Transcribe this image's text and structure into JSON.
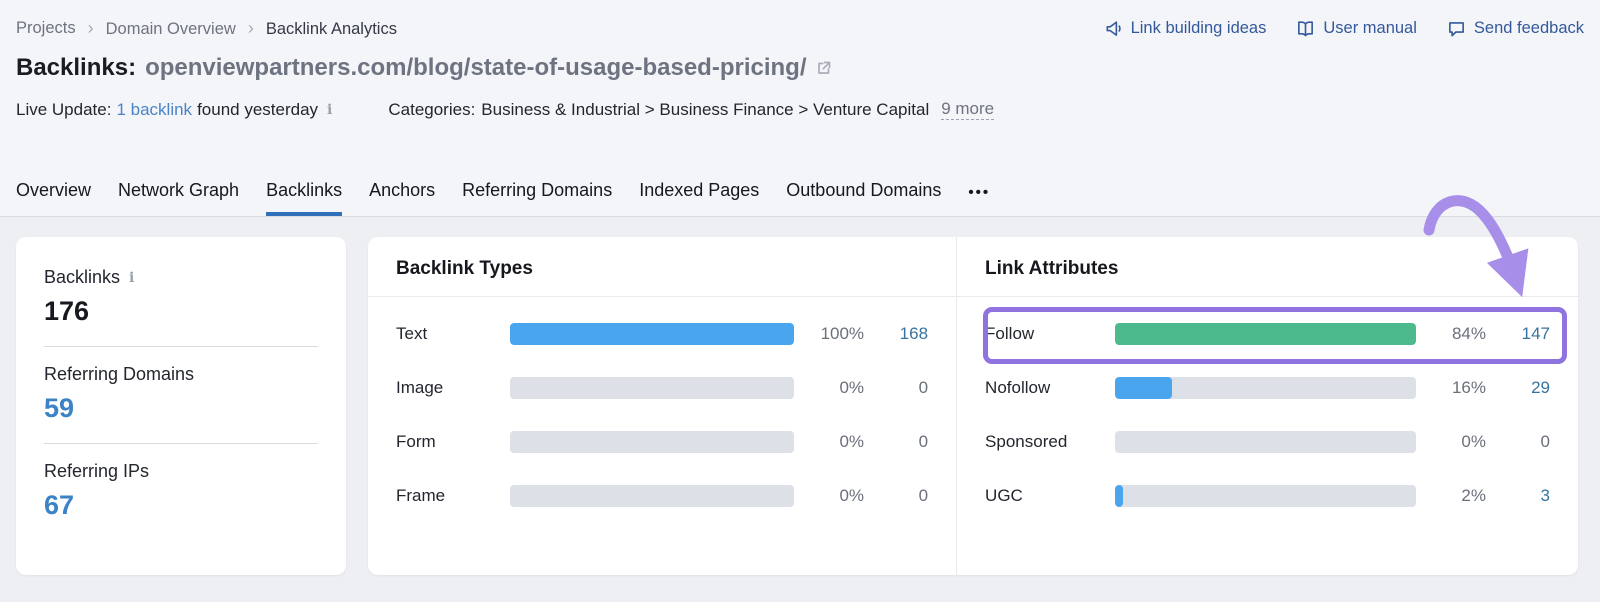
{
  "colors": {
    "bar_blue": "#49a5ee",
    "bar_green": "#4cba8d",
    "accent_purple": "#8f74e0",
    "arrow_purple": "#a78ee9",
    "active_tab_blue": "#2e6fb7",
    "link_blue": "#33599c",
    "count_blue": "#35749e",
    "stat_blue": "#3c82c6"
  },
  "breadcrumb": {
    "items": [
      "Projects",
      "Domain Overview",
      "Backlink Analytics"
    ]
  },
  "quicklinks": [
    {
      "label": "Link building ideas",
      "icon": "megaphone-icon"
    },
    {
      "label": "User manual",
      "icon": "book-icon"
    },
    {
      "label": "Send feedback",
      "icon": "feedback-bubble-icon"
    }
  ],
  "title": {
    "prefix": "Backlinks:",
    "url": "openviewpartners.com/blog/state-of-usage-based-pricing/"
  },
  "live_update": {
    "label": "Live Update:",
    "link": "1 backlink",
    "suffix": "found yesterday"
  },
  "categories": {
    "label": "Categories:",
    "path": "Business & Industrial > Business Finance > Venture Capital",
    "more": "9 more"
  },
  "tabs": {
    "items": [
      "Overview",
      "Network Graph",
      "Backlinks",
      "Anchors",
      "Referring Domains",
      "Indexed Pages",
      "Outbound Domains"
    ],
    "active": "Backlinks",
    "more": "•••"
  },
  "icons": {
    "info": "i"
  },
  "stats": {
    "backlinks": {
      "label": "Backlinks",
      "value": "176"
    },
    "referring_domains": {
      "label": "Referring Domains",
      "value": "59"
    },
    "referring_ips": {
      "label": "Referring IPs",
      "value": "67"
    }
  },
  "cards": {
    "types": {
      "title": "Backlink Types",
      "rows": [
        {
          "label": "Text",
          "percent": "100%",
          "count": "168",
          "fill": 100,
          "fill_color": "bar_blue",
          "link": true
        },
        {
          "label": "Image",
          "percent": "0%",
          "count": "0",
          "fill": 0,
          "fill_color": "bar_blue",
          "link": false
        },
        {
          "label": "Form",
          "percent": "0%",
          "count": "0",
          "fill": 0,
          "fill_color": "bar_blue",
          "link": false
        },
        {
          "label": "Frame",
          "percent": "0%",
          "count": "0",
          "fill": 0,
          "fill_color": "bar_blue",
          "link": false
        }
      ]
    },
    "attributes": {
      "title": "Link Attributes",
      "rows": [
        {
          "label": "Follow",
          "percent": "84%",
          "count": "147",
          "fill": 100,
          "fill_color": "bar_green",
          "link": true
        },
        {
          "label": "Nofollow",
          "percent": "16%",
          "count": "29",
          "fill": 19,
          "fill_color": "bar_blue",
          "link": true
        },
        {
          "label": "Sponsored",
          "percent": "0%",
          "count": "0",
          "fill": 0,
          "fill_color": "bar_blue",
          "link": false
        },
        {
          "label": "UGC",
          "percent": "2%",
          "count": "3",
          "fill": 2.5,
          "fill_color": "bar_blue",
          "link": true
        }
      ]
    }
  },
  "chart_data": [
    {
      "type": "bar",
      "title": "Backlink Types",
      "categories": [
        "Text",
        "Image",
        "Form",
        "Frame"
      ],
      "values": [
        100,
        0,
        0,
        0
      ],
      "counts": [
        168,
        0,
        0,
        0
      ],
      "unit": "%"
    },
    {
      "type": "bar",
      "title": "Link Attributes",
      "categories": [
        "Follow",
        "Nofollow",
        "Sponsored",
        "UGC"
      ],
      "values": [
        84,
        16,
        0,
        2
      ],
      "counts": [
        147,
        29,
        0,
        3
      ],
      "unit": "%"
    }
  ]
}
